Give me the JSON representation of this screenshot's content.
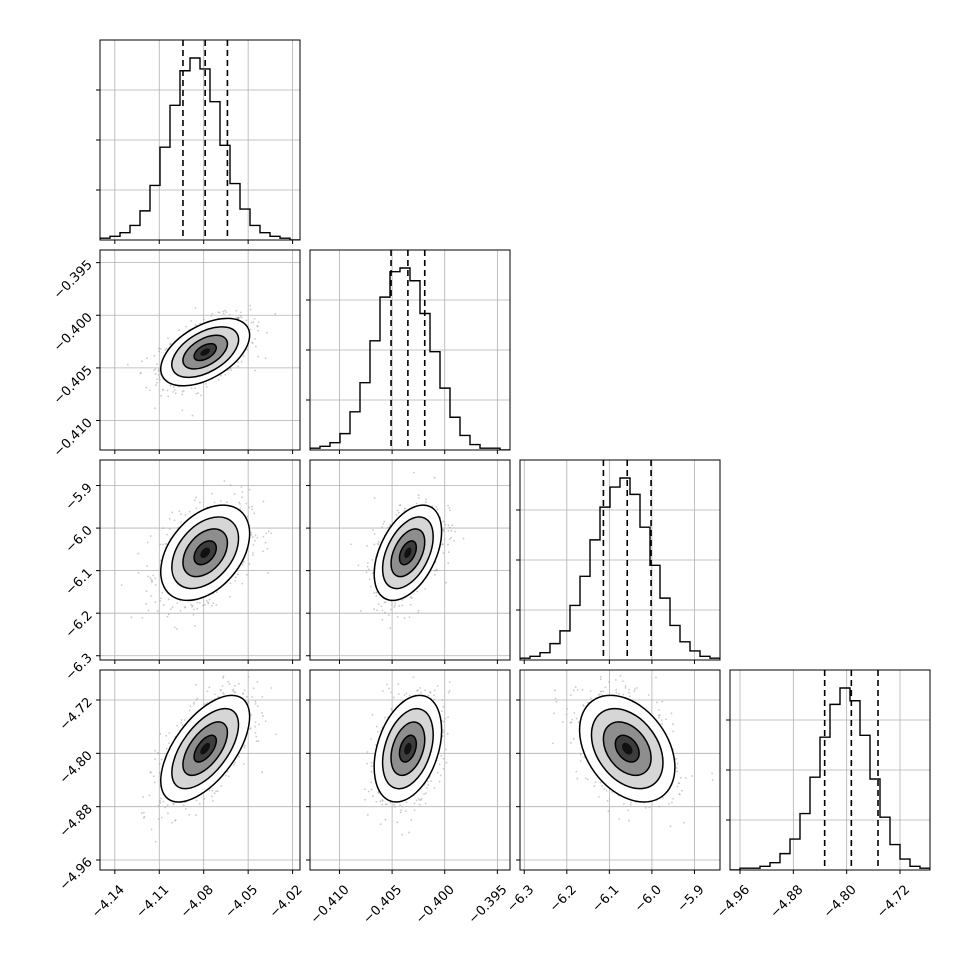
{
  "chart_data": {
    "type": "corner",
    "grid": true,
    "parameters": [
      {
        "index": 0,
        "range": [
          -4.15,
          -4.015
        ],
        "ticks": [
          -4.14,
          -4.11,
          -4.08,
          -4.05,
          -4.02
        ],
        "tick_labels": [
          "−4.14",
          "−4.11",
          "−4.08",
          "−4.05",
          "−4.02"
        ],
        "median": -4.079,
        "q16": -4.094,
        "q84": -4.064,
        "sigma": 0.015
      },
      {
        "index": 1,
        "range": [
          -0.4128,
          -0.3938
        ],
        "ticks": [
          -0.41,
          -0.405,
          -0.4,
          -0.395
        ],
        "tick_labels": [
          "−0.410",
          "−0.405",
          "−0.400",
          "−0.395"
        ],
        "median": -0.4035,
        "q16": -0.4051,
        "q84": -0.4019,
        "sigma": 0.0016
      },
      {
        "index": 2,
        "range": [
          -6.31,
          -5.84
        ],
        "ticks": [
          -6.3,
          -6.2,
          -6.1,
          -6.0,
          -5.9
        ],
        "tick_labels": [
          "−6.3",
          "−6.2",
          "−6.1",
          "−6.0",
          "−5.9"
        ],
        "median": -6.058,
        "q16": -6.114,
        "q84": -6.002,
        "sigma": 0.056
      },
      {
        "index": 3,
        "range": [
          -4.975,
          -4.675
        ],
        "ticks": [
          -4.96,
          -4.88,
          -4.8,
          -4.72
        ],
        "tick_labels": [
          "−4.96",
          "−4.88",
          "−4.80",
          "−4.72"
        ],
        "median": -4.793,
        "q16": -4.833,
        "q84": -4.753,
        "sigma": 0.04
      }
    ],
    "correlations": [
      {
        "pair": [
          0,
          1
        ],
        "r": 0.5
      },
      {
        "pair": [
          0,
          2
        ],
        "r": 0.4
      },
      {
        "pair": [
          1,
          2
        ],
        "r": 0.45
      },
      {
        "pair": [
          0,
          3
        ],
        "r": 0.6
      },
      {
        "pair": [
          1,
          3
        ],
        "r": 0.35
      },
      {
        "pair": [
          2,
          3
        ],
        "r": -0.35
      }
    ],
    "histograms": [
      {
        "param": 0,
        "bins": 20,
        "counts": [
          1,
          2,
          4,
          8,
          16,
          30,
          51,
          74,
          93,
          100,
          94,
          76,
          52,
          31,
          17,
          8,
          4,
          2,
          1,
          0
        ]
      },
      {
        "param": 1,
        "bins": 20,
        "counts": [
          1,
          2,
          4,
          9,
          21,
          37,
          60,
          84,
          98,
          100,
          93,
          75,
          54,
          34,
          18,
          8,
          3,
          1,
          1,
          0
        ]
      },
      {
        "param": 2,
        "bins": 20,
        "counts": [
          1,
          2,
          4,
          9,
          16,
          30,
          46,
          66,
          84,
          95,
          100,
          91,
          73,
          52,
          34,
          19,
          10,
          5,
          2,
          1
        ]
      },
      {
        "param": 3,
        "bins": 20,
        "counts": [
          0,
          1,
          1,
          2,
          4,
          9,
          17,
          31,
          51,
          73,
          91,
          100,
          93,
          74,
          50,
          29,
          14,
          6,
          2,
          1
        ]
      }
    ],
    "contour_levels_sigma": [
      0.5,
      1.0,
      1.5,
      2.0
    ],
    "colors": {
      "hist_line": "#000000",
      "quantile_line": "#000000",
      "contour": "#000000",
      "points": "#9e9e9e",
      "density_dark": "#111111",
      "grid": "#b0b0b0"
    }
  }
}
